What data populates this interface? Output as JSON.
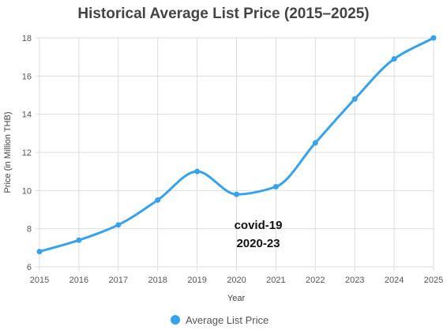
{
  "chart_data": {
    "type": "line",
    "title": "Historical Average List Price (2015–2025)",
    "xlabel": "Year",
    "ylabel": "Price (in Million THB)",
    "categories": [
      "2015",
      "2016",
      "2017",
      "2018",
      "2019",
      "2020",
      "2021",
      "2022",
      "2023",
      "2024",
      "2025"
    ],
    "series": [
      {
        "name": "Average List Price",
        "values": [
          6.8,
          7.4,
          8.2,
          9.5,
          11.0,
          9.8,
          10.2,
          12.5,
          14.8,
          16.9,
          18.0
        ],
        "color": "#36a2eb"
      }
    ],
    "ylim": [
      6,
      18
    ],
    "yticks": [
      6,
      8,
      10,
      12,
      14,
      16,
      18
    ],
    "grid": true,
    "legend_position": "bottom",
    "annotation": {
      "line1": "covid-19",
      "line2": "2020-23"
    }
  }
}
